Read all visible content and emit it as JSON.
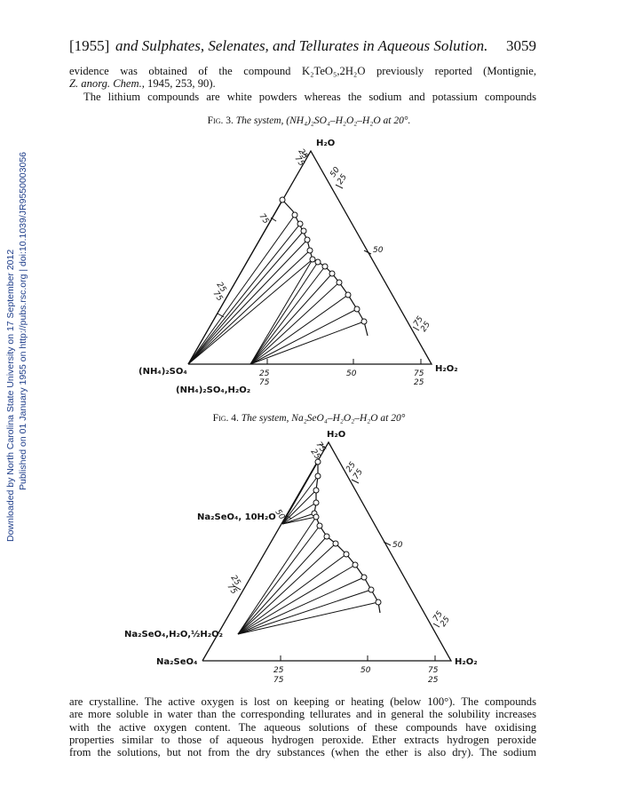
{
  "side_notes": {
    "downloaded": "Downloaded by North Carolina State University on 17 September 2012",
    "published": "Published on 01 January 1955 on http://pubs.rsc.org | doi:10.1039/JR9550003056"
  },
  "header": {
    "year": "[1955]",
    "title": "and Sulphates, Selenates, and Tellurates in Aqueous Solution.",
    "page": "3059"
  },
  "paragraph1": {
    "line1": "evidence was obtained of the compound K₂TeO₅,2H₂O previously reported (Montignie,",
    "line2_journal": "Z. anorg. Chem.",
    "line2_rest": ", 1945, 253, 90).",
    "line3": "The lithium compounds are white powders whereas the sodium and potassium compounds"
  },
  "fig3": {
    "caption_label": "Fig. 3.",
    "caption_text": "The system, (NH₄)₂SO₄–H₂O₂–H₂O at 20°.",
    "apex": "H₂O",
    "left_vertex": "(NH₄)₂SO₄",
    "right_vertex": "H₂O₂",
    "solid_phase": "(NH₄)₂SO₄,H₂O₂",
    "ticks": [
      "25",
      "75",
      "50",
      "25",
      "75",
      "25",
      "75",
      "50",
      "75",
      "25",
      "25",
      "50",
      "75",
      "75",
      "25"
    ]
  },
  "fig4": {
    "caption_label": "Fig. 4.",
    "caption_text": "The system, Na₂SeO₄–H₂O₂–H₂O at 20°",
    "apex": "H₂O",
    "left_vertex": "Na₂SeO₄",
    "right_vertex": "H₂O₂",
    "solid_phase_1": "Na₂SeO₄, 10H₂O",
    "solid_phase_2": "Na₂SeO₄,H₂O,½H₂O₂",
    "ticks": [
      "75",
      "25",
      "25",
      "75",
      "50",
      "25",
      "75",
      "50",
      "75",
      "25",
      "25",
      "50",
      "75",
      "75",
      "25"
    ]
  },
  "paragraph2": [
    "are crystalline.  The active oxygen is lost on keeping or heating (below 100°).  The compounds",
    "are more soluble in water than the corresponding tellurates and in general the solubility increases",
    "with the active oxygen content.  The aqueous solutions of these compounds have oxidising",
    "properties similar to those of aqueous hydrogen peroxide.  Ether extracts hydrogen peroxide",
    "from the solutions, but not from the dry substances (when the ether is also dry).  The sodium"
  ]
}
